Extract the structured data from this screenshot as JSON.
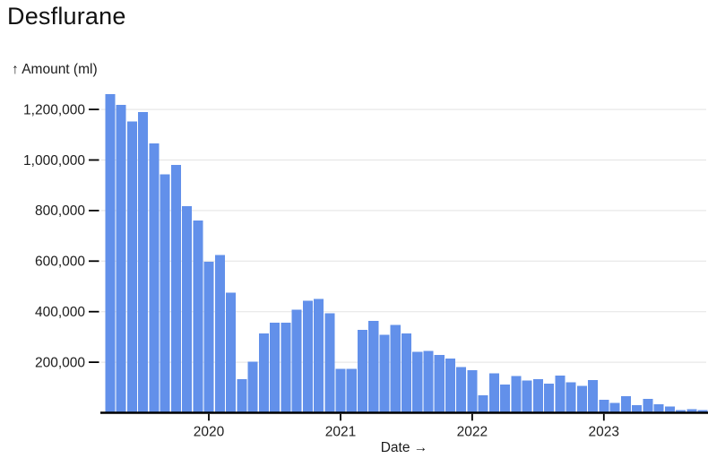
{
  "title": "Desflurane",
  "chart_data": {
    "type": "bar",
    "title": "Desflurane",
    "ylabel": "↑ Amount (ml)",
    "xlabel": "Date →",
    "x": [
      "2019-04",
      "2019-05",
      "2019-06",
      "2019-07",
      "2019-08",
      "2019-09",
      "2019-10",
      "2019-11",
      "2019-12",
      "2020-01",
      "2020-02",
      "2020-03",
      "2020-04",
      "2020-05",
      "2020-06",
      "2020-07",
      "2020-08",
      "2020-09",
      "2020-10",
      "2020-11",
      "2020-12",
      "2021-01",
      "2021-02",
      "2021-03",
      "2021-04",
      "2021-05",
      "2021-06",
      "2021-07",
      "2021-08",
      "2021-09",
      "2021-10",
      "2021-11",
      "2021-12",
      "2022-01",
      "2022-02",
      "2022-03",
      "2022-04",
      "2022-05",
      "2022-06",
      "2022-07",
      "2022-08",
      "2022-09",
      "2022-10",
      "2022-11",
      "2022-12",
      "2023-01",
      "2023-02",
      "2023-03",
      "2023-04",
      "2023-05",
      "2023-06",
      "2023-07",
      "2023-08",
      "2023-09",
      "2023-10"
    ],
    "values": [
      1260000,
      1218000,
      1153000,
      1190000,
      1065000,
      944000,
      981000,
      818000,
      760000,
      598000,
      625000,
      476000,
      133000,
      202000,
      314000,
      356000,
      357000,
      408000,
      444000,
      450000,
      394000,
      174000,
      174000,
      328000,
      363000,
      308000,
      347000,
      314000,
      242000,
      245000,
      229000,
      214000,
      180000,
      168000,
      69000,
      156000,
      111000,
      145000,
      128000,
      133000,
      116000,
      147000,
      121000,
      106000,
      130000,
      51000,
      39000,
      65000,
      30000,
      55000,
      33000,
      25000,
      10000,
      15000,
      10000
    ],
    "ylim": [
      0,
      1260000
    ],
    "y_ticks": [
      200000,
      400000,
      600000,
      800000,
      1000000,
      1200000
    ],
    "y_tick_labels": [
      "200,000",
      "400,000",
      "600,000",
      "800,000",
      "1,000,000",
      "1,200,000"
    ],
    "x_year_ticks": [
      {
        "label": "2020",
        "month_index": 9
      },
      {
        "label": "2021",
        "month_index": 21
      },
      {
        "label": "2022",
        "month_index": 33
      },
      {
        "label": "2023",
        "month_index": 45
      }
    ],
    "grid": true,
    "legend_position": "none",
    "bar_color": "#6290ea",
    "grid_color": "#e3e3e3",
    "axis_color": "#000000",
    "text_color": "#1c1c1c"
  }
}
